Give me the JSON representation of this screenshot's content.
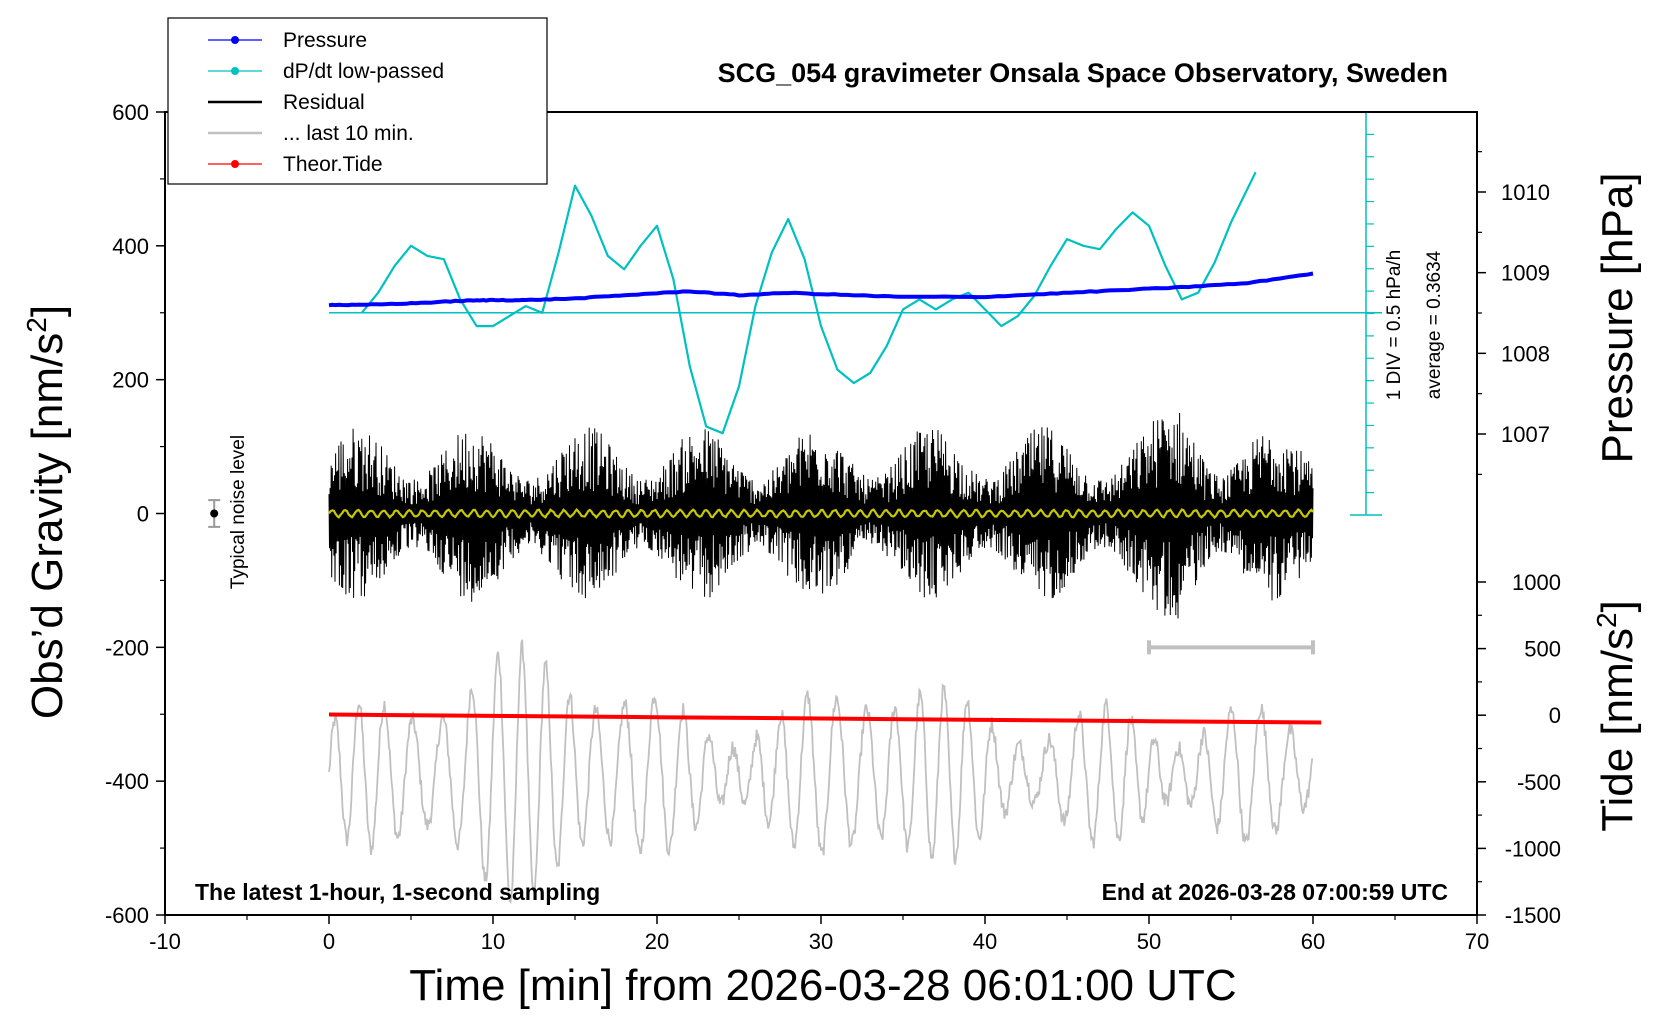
{
  "chart_data": {
    "type": "line",
    "title": "SCG_054 gravimeter Onsala Space Observatory, Sweden",
    "xlabel": "Time [min] from 2026-03-28 06:01:00 UTC",
    "ylabel_left": "Obs’d Gravity [nm/s",
    "ylabel_left_sup": "2",
    "ylabel_left_end": "]",
    "ylabel_right_pressure": "Pressure [hPa]",
    "ylabel_right_tide": "Tide [nm/s",
    "ylabel_right_tide_sup": "2",
    "ylabel_right_tide_end": "]",
    "xlim": [
      -10,
      70
    ],
    "ylim": [
      -600,
      600
    ],
    "pressure_lim": [
      1006.1,
      1011.2
    ],
    "tide_lim": [
      -1500,
      1500
    ],
    "x_ticks": [
      "-10",
      "0",
      "10",
      "20",
      "30",
      "40",
      "50",
      "60",
      "70"
    ],
    "y_ticks": [
      "-600",
      "-400",
      "-200",
      "0",
      "200",
      "400",
      "600"
    ],
    "pressure_ticks": [
      "1007",
      "1008",
      "1009",
      "1010"
    ],
    "tide_ticks": [
      "-1500",
      "-1000",
      "-500",
      "0",
      "500",
      "1000"
    ],
    "note_left": "The latest 1-hour, 1-second sampling",
    "note_right": "End at 2026-03-28 07:00:59 UTC",
    "noise_label": "Typical noise level",
    "noise_bar": {
      "x": -7,
      "y": 0,
      "err": 20
    },
    "scale_label_1": "1 DIV = 0.5 hPa/h",
    "scale_label_2": "average = 0.3634",
    "dpdt_baseline": 300,
    "last10_bar": {
      "x0": 50,
      "x1": 60,
      "y": -200
    },
    "legend": [
      {
        "label": "Pressure",
        "color": "#0000ff",
        "marker": true
      },
      {
        "label": "dP/dt low-passed",
        "color": "#00c0c0",
        "marker": true
      },
      {
        "label": "Residual",
        "color": "#000000",
        "marker": false
      },
      {
        "label": "... last 10 min.",
        "color": "#c0c0c0",
        "marker": false
      },
      {
        "label": "Theor.Tide",
        "color": "#ff0000",
        "marker": true
      }
    ],
    "series": [
      {
        "name": "Pressure",
        "color": "#0000ff",
        "axis": "pressure",
        "x": [
          0,
          2,
          5,
          8,
          10,
          12,
          15,
          18,
          22,
          25,
          28,
          32,
          35,
          40,
          44,
          48,
          52,
          56,
          60
        ],
        "y": [
          1008.6,
          1008.6,
          1008.62,
          1008.65,
          1008.66,
          1008.66,
          1008.68,
          1008.72,
          1008.77,
          1008.72,
          1008.75,
          1008.72,
          1008.7,
          1008.7,
          1008.74,
          1008.78,
          1008.82,
          1008.87,
          1008.99
        ]
      },
      {
        "name": "dP/dt low-passed",
        "color": "#00c0c0",
        "axis": "gravity",
        "x": [
          2,
          3,
          4,
          5,
          6,
          7,
          8,
          9,
          10,
          11,
          12,
          13,
          14,
          15,
          16,
          17,
          18,
          19,
          20,
          21,
          22,
          23,
          24,
          25,
          26,
          27,
          28,
          29,
          30,
          31,
          32,
          33,
          34,
          35,
          36,
          37,
          38,
          39,
          40,
          41,
          42,
          43,
          44,
          45,
          46,
          47,
          48,
          49,
          50,
          51,
          52,
          53,
          54,
          55,
          56.5
        ],
        "y": [
          300,
          330,
          370,
          400,
          385,
          380,
          320,
          280,
          280,
          295,
          310,
          300,
          390,
          490,
          445,
          385,
          365,
          400,
          430,
          350,
          220,
          130,
          120,
          190,
          310,
          390,
          440,
          380,
          280,
          215,
          195,
          210,
          250,
          305,
          320,
          305,
          320,
          330,
          305,
          280,
          295,
          325,
          370,
          410,
          400,
          395,
          425,
          450,
          430,
          370,
          320,
          330,
          375,
          435,
          510
        ]
      },
      {
        "name": "Theor.Tide",
        "color": "#ff0000",
        "axis": "tide",
        "x": [
          0,
          10,
          20,
          30,
          40,
          50,
          60.5
        ],
        "y": [
          5,
          -5,
          -15,
          -25,
          -35,
          -45,
          -55
        ]
      },
      {
        "name": "Residual",
        "color": "#000000",
        "axis": "gravity",
        "x_range": [
          0,
          60
        ],
        "envelope": 110
      },
      {
        "name": "... last 10 min.",
        "color": "#c0c0c0",
        "axis": "gravity",
        "x_range": [
          0,
          60
        ],
        "center": -390,
        "envelope": 160
      }
    ]
  }
}
